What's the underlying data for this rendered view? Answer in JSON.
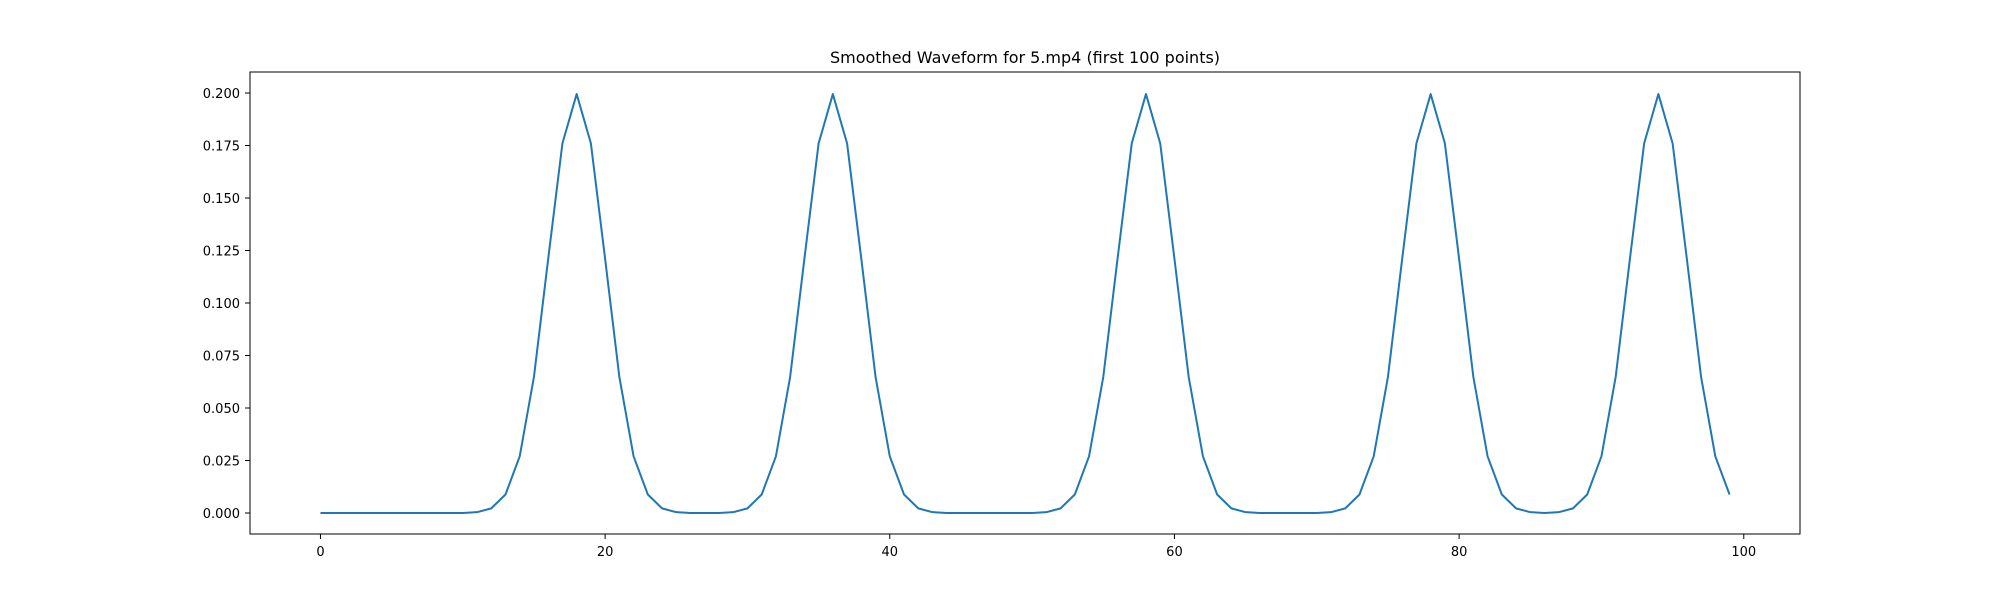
{
  "chart_data": {
    "type": "line",
    "title": "Smoothed Waveform for 5.mp4 (first 100 points)",
    "xlabel": "",
    "ylabel": "",
    "xlim": [
      -4.95,
      103.95
    ],
    "ylim": [
      -0.01,
      0.21
    ],
    "xticks": [
      0,
      20,
      40,
      60,
      80,
      100
    ],
    "xtick_labels": [
      "0",
      "20",
      "40",
      "60",
      "80",
      "100"
    ],
    "yticks": [
      0.0,
      0.025,
      0.05,
      0.075,
      0.1,
      0.125,
      0.15,
      0.175,
      0.2
    ],
    "ytick_labels": [
      "0.000",
      "0.025",
      "0.050",
      "0.075",
      "0.100",
      "0.125",
      "0.150",
      "0.175",
      "0.200"
    ],
    "grid": false,
    "series": [
      {
        "color": "#1f77b4",
        "x": [
          0,
          1,
          2,
          3,
          4,
          5,
          6,
          7,
          8,
          9,
          10,
          11,
          12,
          13,
          14,
          15,
          16,
          17,
          18,
          19,
          20,
          21,
          22,
          23,
          24,
          25,
          26,
          27,
          28,
          29,
          30,
          31,
          32,
          33,
          34,
          35,
          36,
          37,
          38,
          39,
          40,
          41,
          42,
          43,
          44,
          45,
          46,
          47,
          48,
          49,
          50,
          51,
          52,
          53,
          54,
          55,
          56,
          57,
          58,
          59,
          60,
          61,
          62,
          63,
          64,
          65,
          66,
          67,
          68,
          69,
          70,
          71,
          72,
          73,
          74,
          75,
          76,
          77,
          78,
          79,
          80,
          81,
          82,
          83,
          84,
          85,
          86,
          87,
          88,
          89,
          90,
          91,
          92,
          93,
          94,
          95,
          96,
          97,
          98,
          99
        ],
        "values": [
          0,
          0,
          0,
          0,
          0,
          0,
          0,
          0,
          0,
          0,
          0,
          0.0004,
          0.0022,
          0.0088,
          0.027,
          0.0648,
          0.121,
          0.176,
          0.1995,
          0.176,
          0.121,
          0.0648,
          0.027,
          0.0088,
          0.0022,
          0.0004,
          0,
          0,
          0,
          0.0004,
          0.0022,
          0.0088,
          0.027,
          0.0648,
          0.121,
          0.176,
          0.1995,
          0.176,
          0.121,
          0.0648,
          0.027,
          0.0088,
          0.0022,
          0.0004,
          0,
          0,
          0,
          0,
          0,
          0,
          0,
          0.0004,
          0.0022,
          0.0088,
          0.027,
          0.0648,
          0.121,
          0.176,
          0.1995,
          0.176,
          0.121,
          0.0648,
          0.027,
          0.0088,
          0.0022,
          0.0004,
          0,
          0,
          0,
          0,
          0,
          0.0004,
          0.0022,
          0.0088,
          0.027,
          0.0648,
          0.121,
          0.176,
          0.1995,
          0.176,
          0.121,
          0.0648,
          0.027,
          0.0088,
          0.0022,
          0.0004,
          0,
          0.0004,
          0.0022,
          0.0088,
          0.027,
          0.0648,
          0.121,
          0.176,
          0.1995,
          0.176,
          0.121,
          0.0648,
          0.027,
          0.0088
        ]
      }
    ]
  }
}
